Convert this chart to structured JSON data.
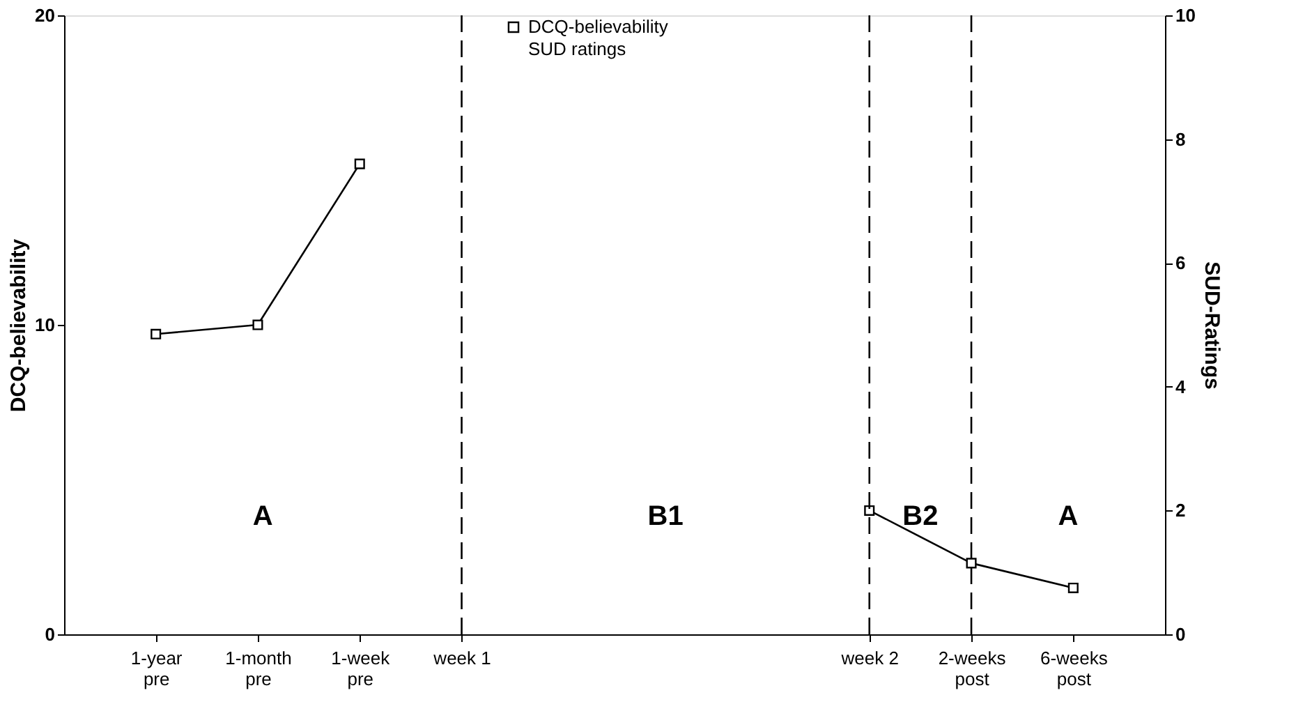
{
  "chart_data": {
    "type": "line",
    "categories": [
      "1-year pre",
      "1-month pre",
      "1-week pre",
      "week 1",
      null,
      null,
      null,
      "week 2",
      "2-weeks post",
      "6-weeks post"
    ],
    "series": [
      {
        "name": "DCQ-believability",
        "color": "#000000",
        "values": [
          9.7,
          10.0,
          15.2,
          null,
          null,
          null,
          null,
          4.0,
          2.3,
          1.5
        ],
        "marker": "square"
      },
      {
        "name": "SUD ratings",
        "color": "#000000",
        "axis": "y2",
        "values": [
          null,
          null,
          null,
          null,
          null,
          null,
          null,
          null,
          null,
          null
        ],
        "marker": "none"
      }
    ],
    "ylabel": "DCQ-believability",
    "y2label": "SUD-Ratings",
    "ylim": [
      0,
      20
    ],
    "yticks": [
      0,
      10,
      20
    ],
    "y2lim": [
      0,
      10
    ],
    "y2ticks": [
      0,
      2,
      4,
      6,
      8,
      10
    ],
    "ref_lines": [
      {
        "axis": "x",
        "value": "week 1",
        "line_style": "dashed",
        "color": "#000000"
      },
      {
        "axis": "x",
        "value": "week 2",
        "line_style": "dashed",
        "color": "#000000"
      },
      {
        "axis": "x",
        "value": "2-weeks post",
        "line_style": "dashed",
        "color": "#000000"
      }
    ],
    "annotations": [
      "A",
      "B1",
      "B2",
      "A"
    ],
    "legend": "top",
    "grid": false
  }
}
